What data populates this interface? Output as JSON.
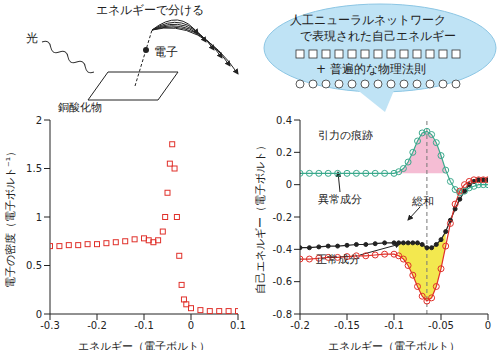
{
  "diagram": {
    "light": "光",
    "electron": "電子",
    "material": "銅酸化物",
    "separate": "エネルギーで分ける",
    "bubble": {
      "line1": "人工ニューラルネットワーク",
      "line2": "で表現された自己エネルギー",
      "line3": "+ 普遍的な物理法則"
    }
  },
  "chart_data": [
    {
      "type": "scatter",
      "x_label": "エネルギー（電子ボルト）",
      "y_label": "電子の密度（電子ボルト⁻¹）",
      "color": "#e0302a",
      "marker": "square",
      "x": [
        -0.3,
        -0.28,
        -0.26,
        -0.24,
        -0.22,
        -0.2,
        -0.18,
        -0.16,
        -0.14,
        -0.12,
        -0.1,
        -0.09,
        -0.08,
        -0.07,
        -0.06,
        -0.055,
        -0.05,
        -0.045,
        -0.04,
        -0.035,
        -0.03,
        -0.025,
        -0.02,
        -0.015,
        -0.01,
        0,
        0.02,
        0.04,
        0.06,
        0.08,
        0.1
      ],
      "values": [
        0.7,
        0.7,
        0.71,
        0.71,
        0.72,
        0.72,
        0.73,
        0.74,
        0.75,
        0.77,
        0.78,
        0.76,
        0.74,
        0.76,
        0.85,
        1.0,
        1.25,
        1.55,
        1.75,
        1.5,
        1.0,
        0.6,
        0.3,
        0.15,
        0.1,
        0.06,
        0.04,
        0.03,
        0.03,
        0.03,
        0.03
      ],
      "xlim": [
        -0.3,
        0.1
      ],
      "xticks": [
        -0.3,
        -0.2,
        -0.1,
        0,
        0.1
      ],
      "ylim": [
        0,
        2
      ],
      "yticks": [
        0,
        0.5,
        1,
        1.5,
        2
      ]
    },
    {
      "type": "line",
      "x_label": "エネルギー（電子ボルト）",
      "y_label": "自己エネルギー（電子ボルト）",
      "annotations": [
        "引力の痕跡"
      ],
      "x": [
        -0.2,
        -0.19,
        -0.18,
        -0.17,
        -0.16,
        -0.15,
        -0.14,
        -0.13,
        -0.12,
        -0.11,
        -0.1,
        -0.095,
        -0.09,
        -0.085,
        -0.08,
        -0.075,
        -0.07,
        -0.065,
        -0.06,
        -0.055,
        -0.05,
        -0.045,
        -0.04,
        -0.035,
        -0.03,
        -0.025,
        -0.02,
        -0.015,
        -0.01,
        -0.005,
        0
      ],
      "series": [
        {
          "name": "異常成分",
          "color": "#3aa98c",
          "marker": "circle",
          "line_style": "solid",
          "values": [
            0.07,
            0.07,
            0.07,
            0.07,
            0.07,
            0.07,
            0.07,
            0.07,
            0.07,
            0.07,
            0.07,
            0.08,
            0.1,
            0.14,
            0.2,
            0.27,
            0.32,
            0.33,
            0.31,
            0.26,
            0.18,
            0.09,
            0.02,
            -0.03,
            -0.05,
            -0.04,
            -0.02,
            -0.01,
            0,
            0,
            0
          ]
        },
        {
          "name": "総和",
          "color": "#222222",
          "marker": "circle",
          "line_style": "solid",
          "values": [
            -0.39,
            -0.39,
            -0.385,
            -0.38,
            -0.38,
            -0.375,
            -0.37,
            -0.37,
            -0.365,
            -0.36,
            -0.36,
            -0.36,
            -0.36,
            -0.36,
            -0.36,
            -0.36,
            -0.37,
            -0.39,
            -0.39,
            -0.37,
            -0.34,
            -0.29,
            -0.22,
            -0.15,
            -0.09,
            -0.04,
            0,
            0.02,
            0.03,
            0.03,
            0.03
          ]
        },
        {
          "name": "正常成分",
          "color": "#e0302a",
          "marker": "circle",
          "line_style": "solid",
          "values": [
            -0.46,
            -0.46,
            -0.455,
            -0.45,
            -0.45,
            -0.445,
            -0.44,
            -0.44,
            -0.435,
            -0.43,
            -0.43,
            -0.44,
            -0.46,
            -0.5,
            -0.56,
            -0.63,
            -0.69,
            -0.72,
            -0.7,
            -0.63,
            -0.52,
            -0.38,
            -0.24,
            -0.12,
            -0.04,
            0,
            0.02,
            0.03,
            0.03,
            0.03,
            0.03
          ]
        }
      ],
      "xlim": [
        -0.2,
        0
      ],
      "xticks": [
        -0.2,
        -0.15,
        -0.1,
        -0.05,
        0
      ],
      "ylim": [
        -0.8,
        0.4
      ],
      "yticks": [
        -0.8,
        -0.6,
        -0.4,
        -0.2,
        0,
        0.2,
        0.4
      ]
    }
  ]
}
